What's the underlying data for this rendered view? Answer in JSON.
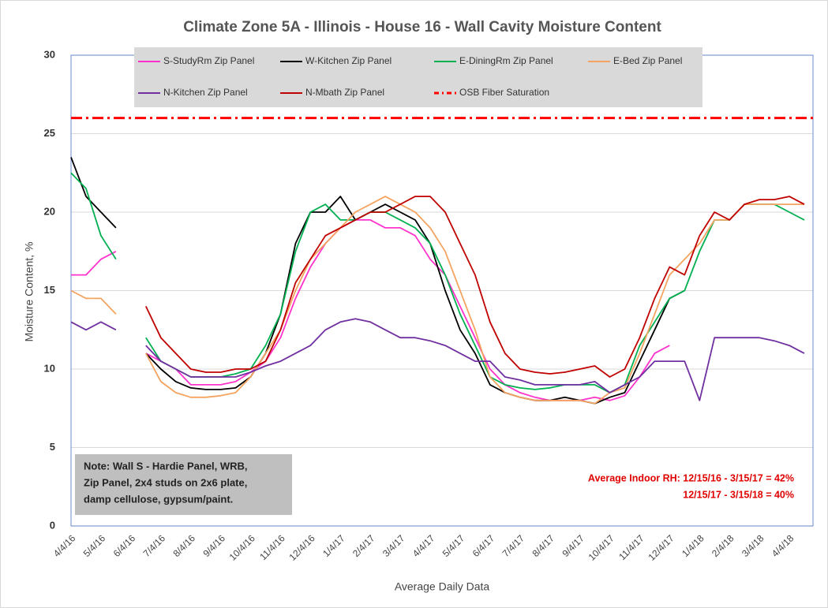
{
  "chart_data": {
    "type": "line",
    "title": "Climate Zone 5A - Illinois - House 16 - Wall Cavity Moisture Content",
    "x_label": "Average Daily Data",
    "y_label": "Moisture Content, %",
    "categories": [
      "4/4/16",
      null,
      "5/4/16",
      null,
      "6/4/16",
      null,
      "7/4/16",
      null,
      "8/4/16",
      null,
      "9/4/16",
      null,
      "10/4/16",
      null,
      "11/4/16",
      null,
      "12/4/16",
      null,
      "1/4/17",
      null,
      "2/4/17",
      null,
      "3/4/17",
      null,
      "4/4/17",
      null,
      "5/4/17",
      null,
      "6/4/17",
      null,
      "7/4/17",
      null,
      "8/4/17",
      null,
      "9/4/17",
      null,
      "10/4/17",
      null,
      "11/4/17",
      null,
      "12/4/17",
      null,
      "1/4/18",
      null,
      "2/4/18",
      null,
      "3/4/18",
      null,
      "4/4/18",
      null
    ],
    "series": [
      {
        "name": "S-StudyRm Zip Panel",
        "color": "#ff33cc",
        "values": [
          16,
          16,
          17,
          17.5,
          null,
          11,
          10.5,
          10,
          9,
          9,
          9,
          9.2,
          9.8,
          10.5,
          12,
          14.5,
          16.5,
          18,
          19,
          19.5,
          19.5,
          19,
          19,
          18.5,
          17,
          16,
          14,
          12,
          10,
          9,
          8.5,
          8.2,
          8,
          8,
          8,
          8.2,
          8,
          8.3,
          9.5,
          11,
          11.5,
          null,
          null,
          null,
          null,
          null,
          null,
          null,
          null,
          null
        ]
      },
      {
        "name": "W-Kitchen Zip Panel",
        "color": "#000000",
        "values": [
          23.5,
          21,
          20,
          19,
          null,
          11,
          10,
          9.2,
          8.8,
          8.7,
          8.7,
          8.8,
          9.5,
          11,
          13.5,
          18,
          20,
          20,
          21,
          19.5,
          20,
          20.5,
          20,
          19.5,
          18,
          15,
          12.5,
          11,
          9,
          8.5,
          8.2,
          8,
          8,
          8.2,
          8,
          7.8,
          8.2,
          8.5,
          10.5,
          12.5,
          14.5,
          15,
          null,
          null,
          null,
          null,
          null,
          null,
          null,
          null
        ]
      },
      {
        "name": "E-DiningRm Zip Panel",
        "color": "#00b050",
        "values": [
          22.5,
          21.5,
          18.5,
          17,
          null,
          12,
          10.5,
          10,
          9.5,
          9.5,
          9.5,
          9.7,
          10,
          11.5,
          13.5,
          17.5,
          20,
          20.5,
          19.5,
          19.5,
          20,
          20,
          19.5,
          19,
          18,
          16,
          13.5,
          11.5,
          9.5,
          9,
          8.8,
          8.7,
          8.8,
          9,
          9,
          9,
          8.5,
          9,
          11.5,
          13,
          14.5,
          15,
          17.5,
          19.5,
          19.5,
          20.5,
          20.5,
          20.5,
          20,
          19.5
        ]
      },
      {
        "name": "E-Bed Zip Panel",
        "color": "#f4a460",
        "values": [
          15,
          14.5,
          14.5,
          13.5,
          null,
          11,
          9.2,
          8.5,
          8.2,
          8.2,
          8.3,
          8.5,
          9.5,
          11,
          12.5,
          15,
          17,
          18,
          19,
          20,
          20.5,
          21,
          20.5,
          20,
          19,
          17.5,
          15,
          12.5,
          9.5,
          8.5,
          8.2,
          8,
          8,
          8,
          8,
          7.8,
          8.5,
          8.8,
          11,
          13.5,
          16,
          17,
          18,
          19.5,
          19.5,
          20.5,
          20.5,
          20.5,
          20.5,
          20.5
        ]
      },
      {
        "name": "N-Kitchen Zip Panel",
        "color": "#7030a0",
        "values": [
          13,
          12.5,
          13,
          12.5,
          null,
          11.5,
          10.5,
          10,
          9.5,
          9.5,
          9.5,
          9.5,
          9.8,
          10.2,
          10.5,
          11,
          11.5,
          12.5,
          13,
          13.2,
          13,
          12.5,
          12,
          12,
          11.8,
          11.5,
          11,
          10.5,
          10.5,
          9.5,
          9.3,
          9,
          9,
          9,
          9,
          9.2,
          8.5,
          9,
          9.5,
          10.5,
          10.5,
          10.5,
          8,
          12,
          12,
          12,
          12,
          11.8,
          11.5,
          11
        ]
      },
      {
        "name": "N-Mbath Zip Panel",
        "color": "#c00000",
        "values": [
          null,
          null,
          null,
          null,
          null,
          14,
          12,
          11,
          10,
          9.8,
          9.8,
          10,
          10,
          10.5,
          12.5,
          15.5,
          17,
          18.5,
          19,
          19.5,
          20,
          20,
          20.5,
          21,
          21,
          20,
          18,
          16,
          13,
          11,
          10,
          9.8,
          9.7,
          9.8,
          10,
          10.2,
          9.5,
          10,
          12,
          14.5,
          16.5,
          16,
          18.5,
          20,
          19.5,
          20.5,
          20.8,
          20.8,
          21,
          20.5
        ]
      }
    ],
    "reference_lines": [
      {
        "name": "OSB Fiber Saturation",
        "value": 26,
        "color": "#ff0000"
      }
    ],
    "ylim": [
      0,
      30
    ],
    "yticks": [
      0,
      5,
      10,
      15,
      20,
      25,
      30
    ],
    "grid": true,
    "legend": "top",
    "annotations": {
      "note": [
        "Note: Wall S - Hardie Panel, WRB,",
        "Zip Panel, 2x4 studs on 2x6 plate,",
        "damp cellulose, gypsum/paint."
      ],
      "rh": [
        "Average Indoor RH: 12/15/16 - 3/15/17 = 42%",
        "12/15/17 - 3/15/18 = 40%"
      ]
    }
  }
}
